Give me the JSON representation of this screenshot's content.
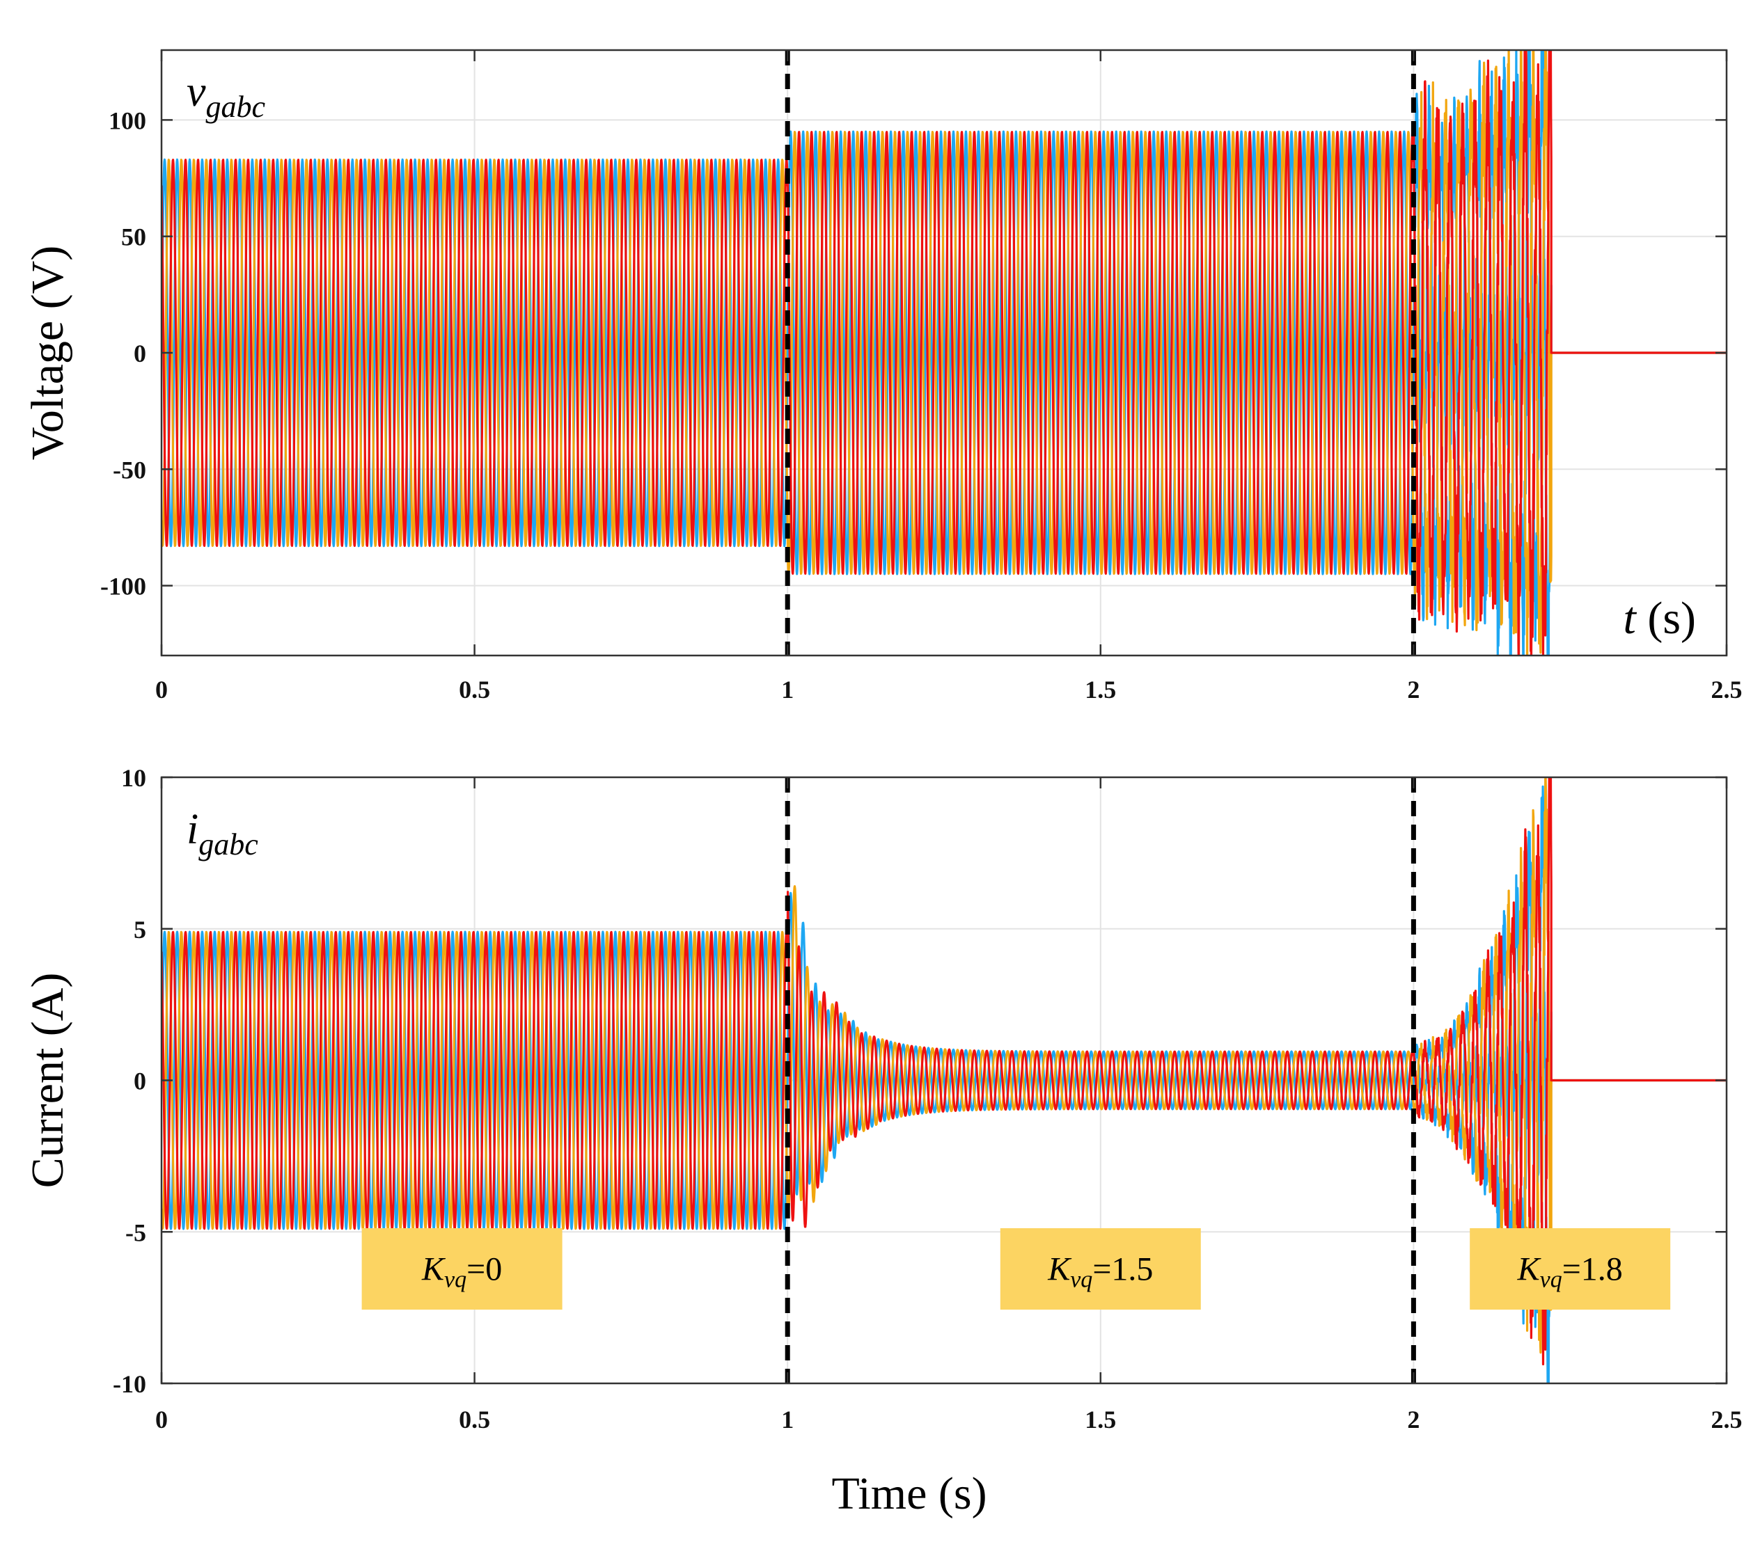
{
  "chart_data": [
    {
      "type": "line",
      "panel": "top",
      "ylabel": "Voltage (V)",
      "signal_label": {
        "main": "v",
        "sub": "gabc"
      },
      "time_label": {
        "var": "t",
        "unit": " (s)"
      },
      "xlim": [
        0,
        2.5
      ],
      "ylim": [
        -130,
        130
      ],
      "xticks": [
        0,
        0.5,
        1,
        1.5,
        2,
        2.5
      ],
      "xtick_labels": [
        "0",
        "0.5",
        "1",
        "1.5",
        "2",
        "2.5"
      ],
      "yticks": [
        100,
        50,
        0,
        -50,
        -100
      ],
      "ytick_labels": [
        "100",
        "50",
        "0",
        "-50",
        "-100"
      ],
      "frequency_hz": 50,
      "trip_time": 2.22,
      "segments": [
        {
          "t0": 0,
          "t1": 1,
          "amplitude": 83
        },
        {
          "t0": 1,
          "t1": 2,
          "amplitude": 95
        },
        {
          "t0": 2,
          "t1": 2.22,
          "amplitude_start": 95,
          "amplitude_end": 125,
          "unstable": true
        }
      ],
      "series": [
        {
          "name": "phase a",
          "color": "#1ea7f2"
        },
        {
          "name": "phase b",
          "color": "#f2a60e"
        },
        {
          "name": "phase c",
          "color": "#ee1111"
        }
      ],
      "event_lines": [
        1,
        2
      ]
    },
    {
      "type": "line",
      "panel": "bottom",
      "ylabel": "Current (A)",
      "xlabel": "Time (s)",
      "signal_label": {
        "main": "i",
        "sub": "gabc"
      },
      "xlim": [
        0,
        2.5
      ],
      "ylim": [
        -10,
        10
      ],
      "xticks": [
        0,
        0.5,
        1,
        1.5,
        2,
        2.5
      ],
      "xtick_labels": [
        "0",
        "0.5",
        "1",
        "1.5",
        "2",
        "2.5"
      ],
      "yticks": [
        10,
        5,
        0,
        -5,
        -10
      ],
      "ytick_labels": [
        "10",
        "5",
        "0",
        "-5",
        "-10"
      ],
      "frequency_hz": 50,
      "trip_time": 2.22,
      "segments": [
        {
          "t0": 0,
          "t1": 1,
          "amplitude": 4.9
        },
        {
          "t0": 1,
          "t1": 2,
          "amplitude": 0.95,
          "transient_peak": 6
        },
        {
          "t0": 2,
          "t1": 2.22,
          "amplitude_start": 1,
          "amplitude_end": 9.7,
          "unstable": true
        }
      ],
      "series": [
        {
          "name": "phase a",
          "color": "#1ea7f2"
        },
        {
          "name": "phase b",
          "color": "#f2a60e"
        },
        {
          "name": "phase c",
          "color": "#ee1111"
        }
      ],
      "event_lines": [
        1,
        2
      ],
      "annotations": [
        {
          "K": "K",
          "sub": "vq",
          "value": "=0",
          "t": 0.48
        },
        {
          "K": "K",
          "sub": "vq",
          "value": "=1.5",
          "t": 1.5
        },
        {
          "K": "K",
          "sub": "vq",
          "value": "=1.8",
          "t": 2.25
        }
      ]
    }
  ]
}
